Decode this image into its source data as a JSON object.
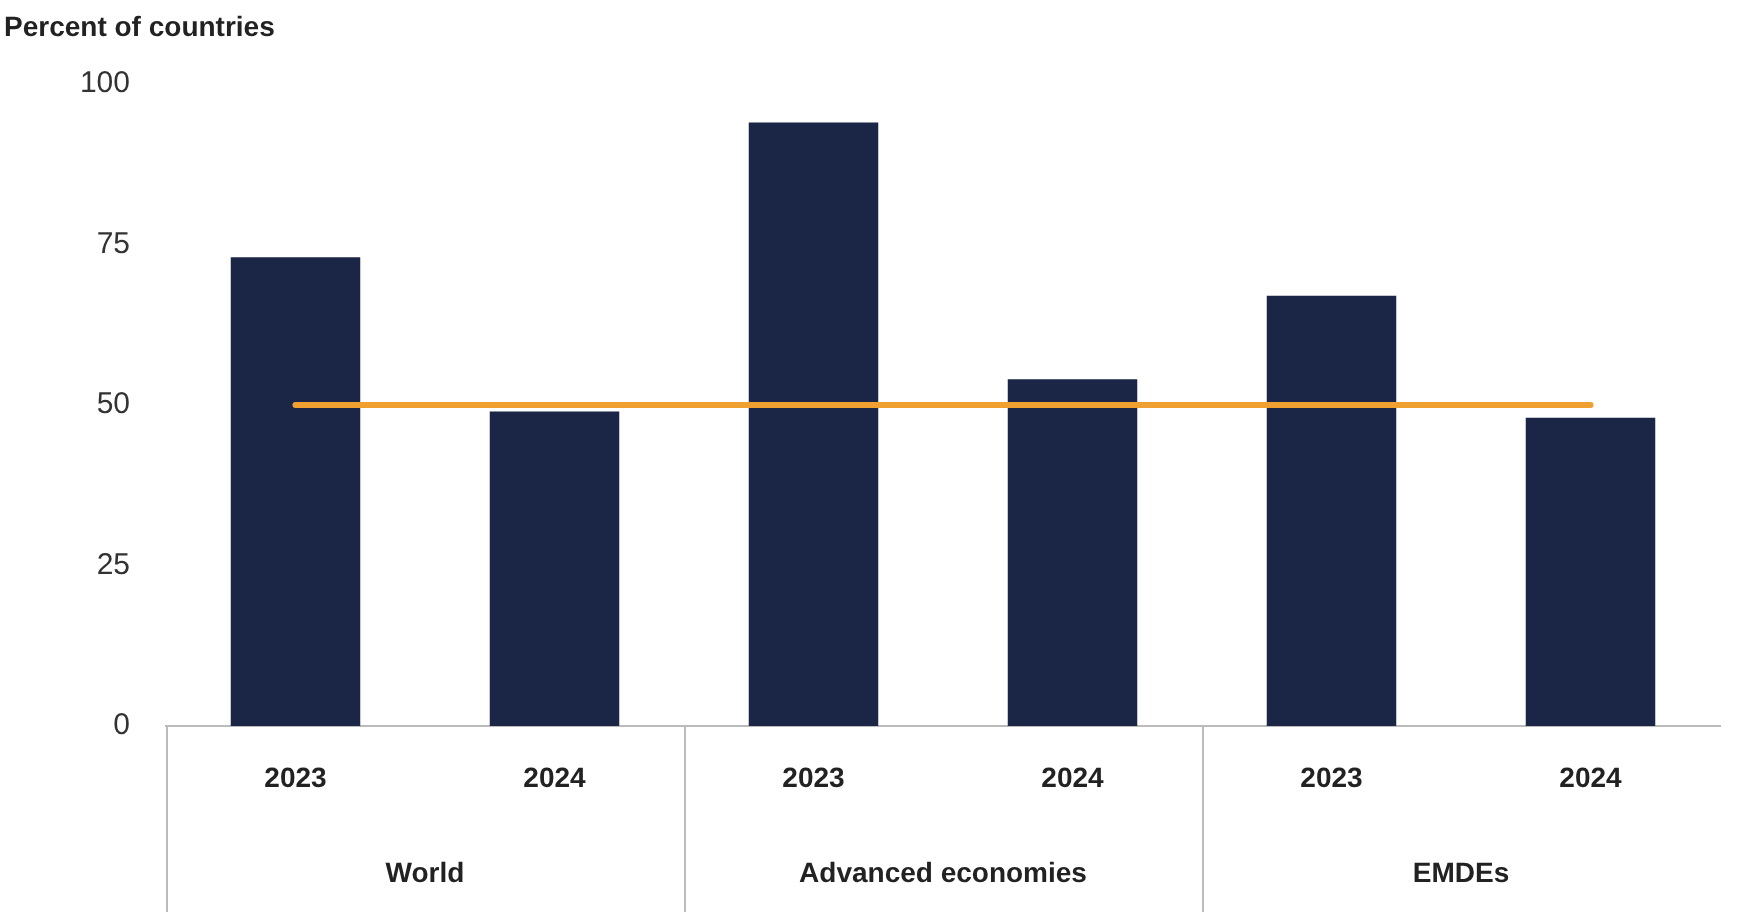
{
  "chart_data": {
    "type": "bar",
    "ylabel": "Percent of countries",
    "categories": [
      "2023",
      "2024",
      "2023",
      "2024",
      "2023",
      "2024"
    ],
    "values": [
      73,
      49,
      94,
      54,
      67,
      48
    ],
    "color": "#1b2646",
    "annotations": [
      "World",
      "Advanced economies",
      "EMDEs"
    ],
    "ylim": [
      0,
      100
    ],
    "yticks": [
      0,
      25,
      50,
      75,
      100
    ],
    "grid": false,
    "legend": false,
    "ref_lines": [
      {
        "axis": "y",
        "value": 50,
        "color": "#f0a030"
      }
    ]
  }
}
